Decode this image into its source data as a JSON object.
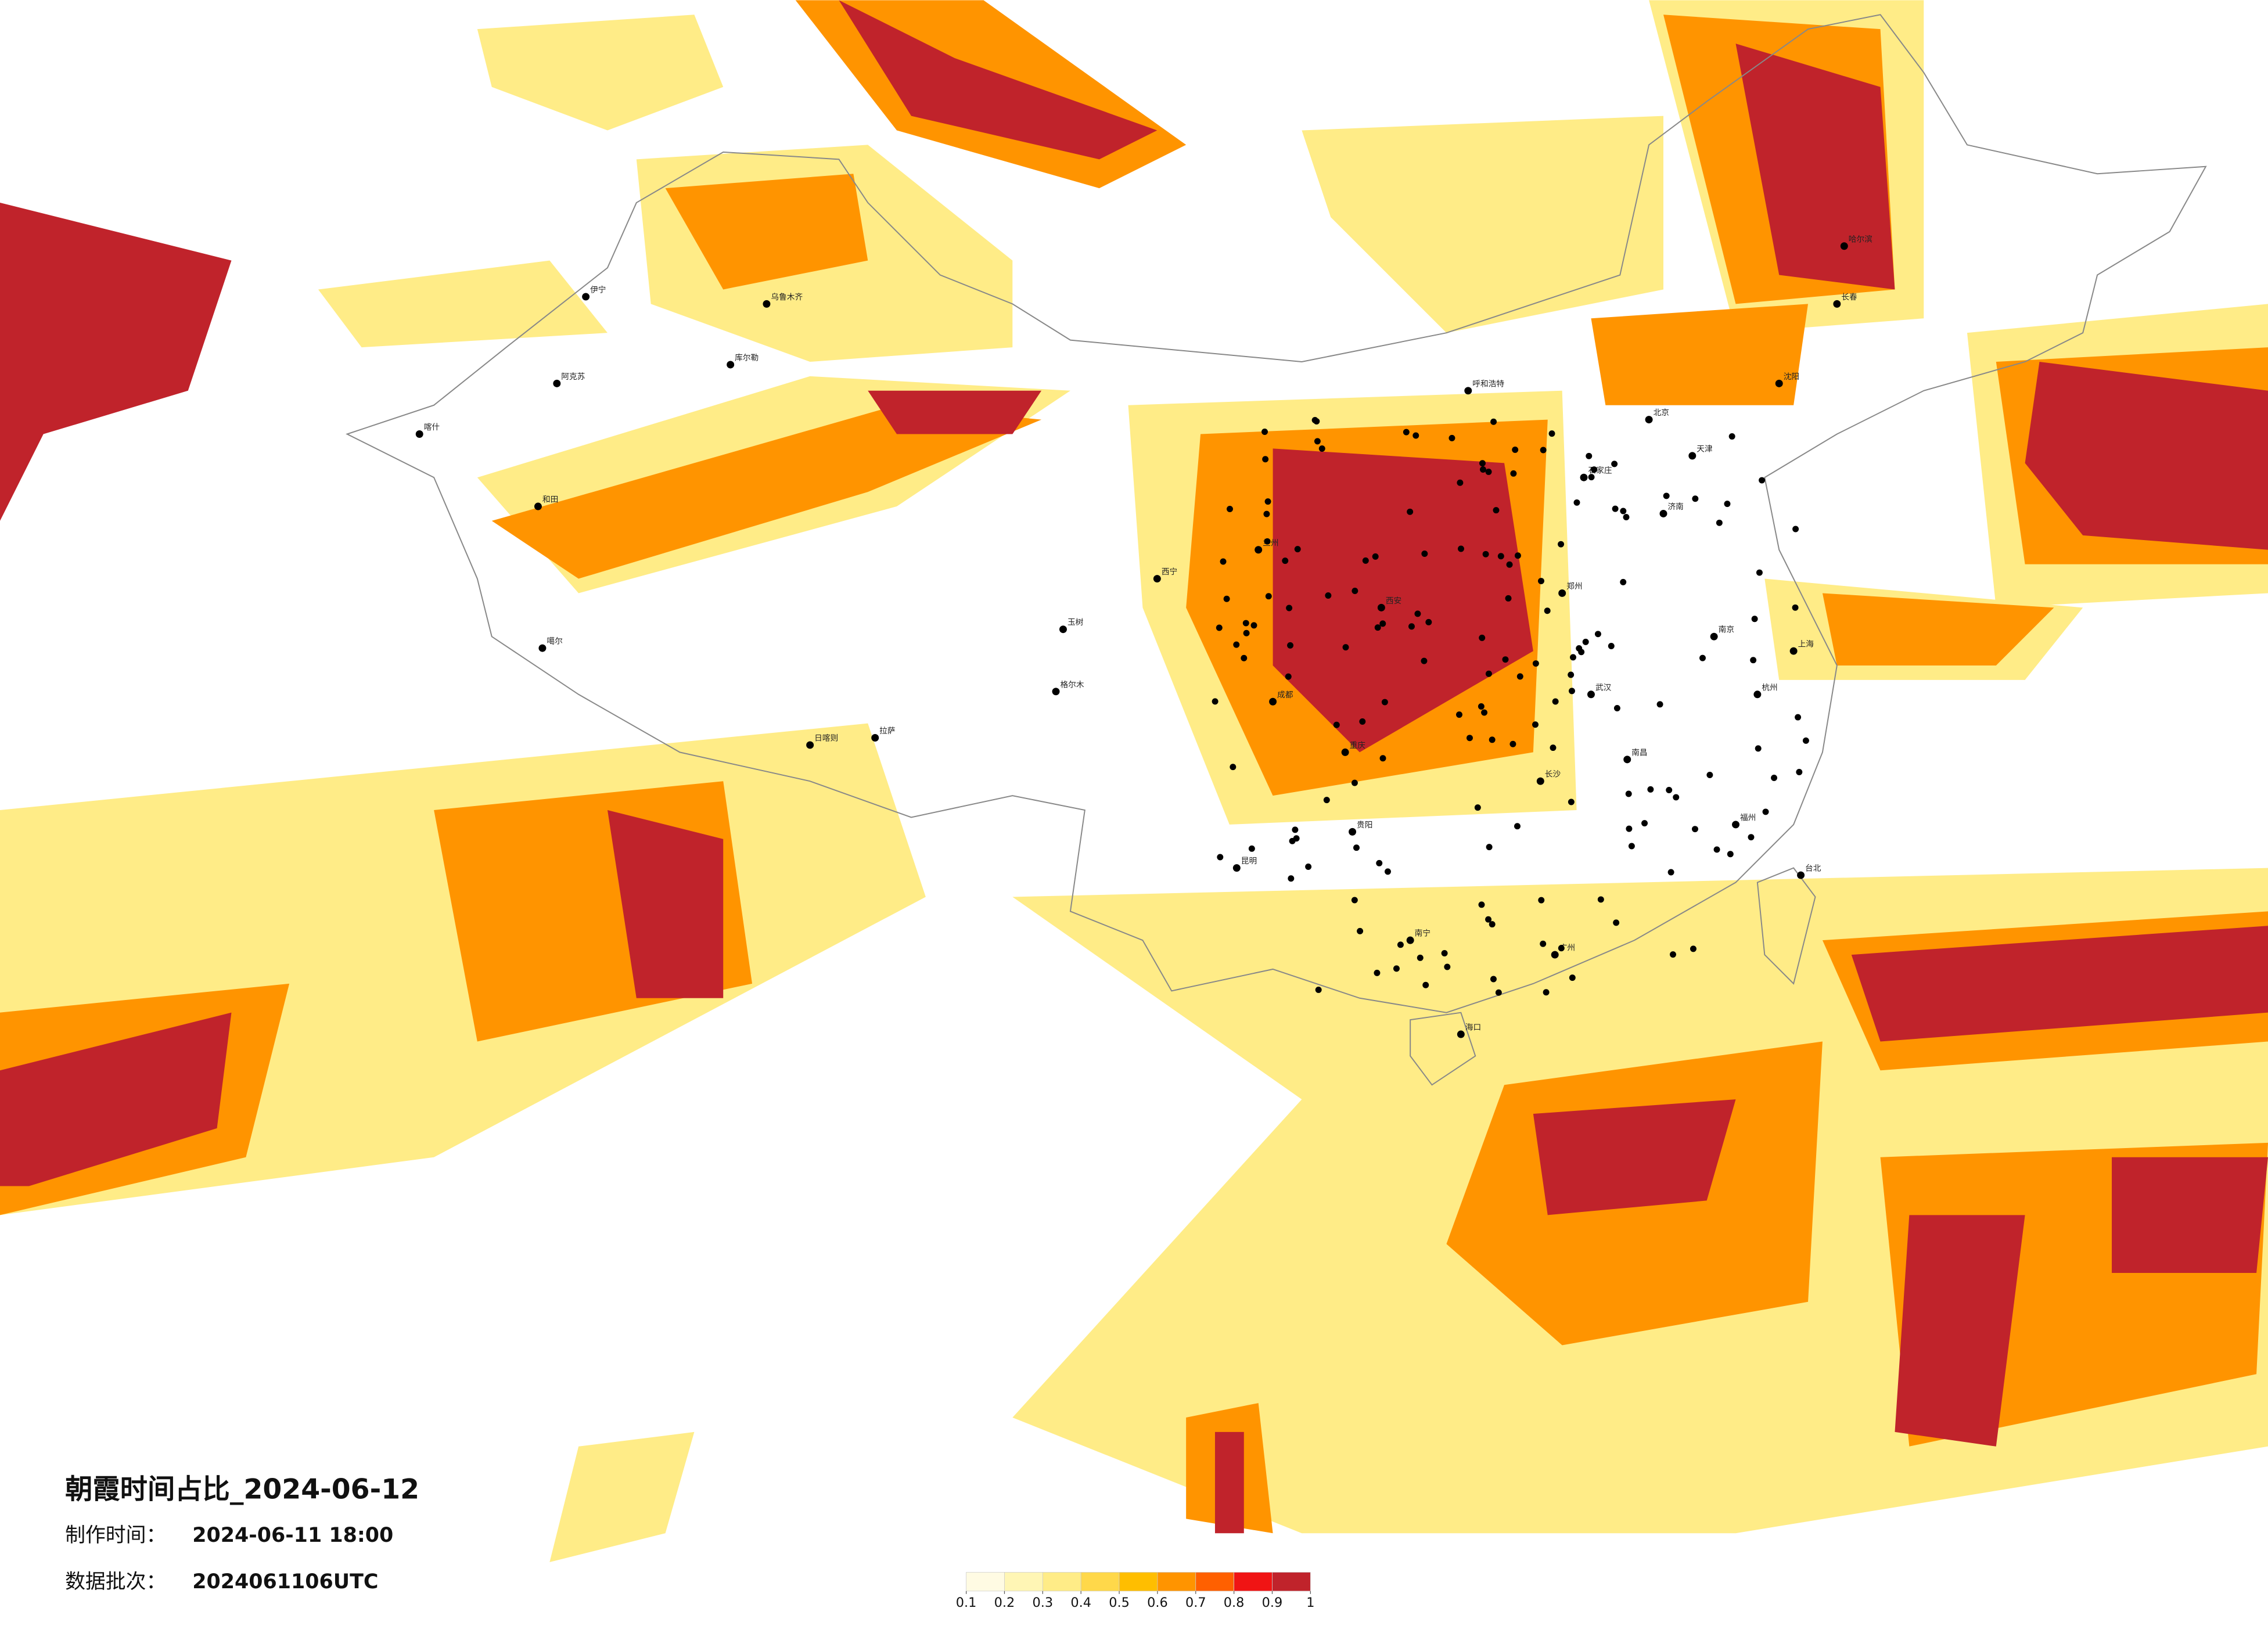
{
  "title": "朝霞时间占比_2024-06-12",
  "made_time_label": "制作时间：",
  "made_time": "2024-06-11 18:00",
  "batch_label": "数据批次：",
  "batch": "2024061106UTC",
  "legend": {
    "ticks": [
      0.1,
      0.2,
      0.3,
      0.4,
      0.5,
      0.6,
      0.7,
      0.8,
      0.9,
      1
    ],
    "colors": [
      "#fffbe3",
      "#fff6b5",
      "#ffec87",
      "#ffd84a",
      "#ffbe00",
      "#ff9400",
      "#ff6000",
      "#f01414",
      "#c0232b"
    ]
  },
  "cities": [
    "哈尔滨",
    "长春",
    "沈阳",
    "北京",
    "天津",
    "石家庄",
    "济南",
    "郑州",
    "西安",
    "兰州",
    "成都",
    "重庆",
    "武汉",
    "南京",
    "上海",
    "杭州",
    "长沙",
    "南昌",
    "福州",
    "广州",
    "南宁",
    "昆明",
    "贵阳",
    "海口",
    "台北",
    "拉萨",
    "乌鲁木齐",
    "喀什",
    "伊宁",
    "和田",
    "西宁",
    "呼和浩特",
    "格尔木",
    "日喀则",
    "噶尔",
    "玉树",
    "库尔勒",
    "阿克苏"
  ]
}
